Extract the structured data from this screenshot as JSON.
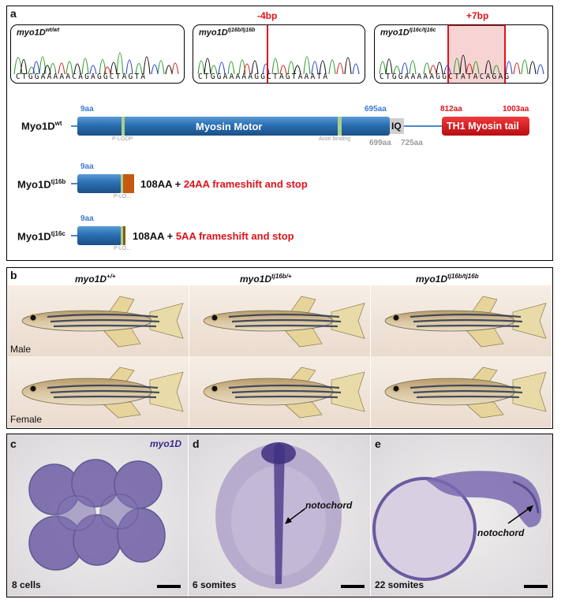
{
  "panel_a": {
    "label": "a",
    "chromatograms": [
      {
        "genotype": "myo1D",
        "superscript": "wt/wt",
        "sequence": "CTGGAAAAACAGAGGCTAGTA"
      },
      {
        "genotype": "myo1D",
        "superscript": "tj16b/tj16b",
        "sequence": "CTGGAAAAAGGCTAGTAAATA",
        "mutation_label": "-4bp"
      },
      {
        "genotype": "myo1D",
        "superscript": "tj16c/tj16c",
        "sequence": "CTGGAAAAAGGCTATACAGAG",
        "mutation_label": "+7bp"
      }
    ],
    "wt_protein": {
      "name": "Myo1D",
      "superscript": "wt",
      "motor_label": "Myosin Motor",
      "ploop_label": "P-LOOP",
      "actin_label": "Actin binding",
      "iq_label": "IQ",
      "tail_label": "TH1 Myosin tail",
      "aa_9": "9aa",
      "aa_695": "695aa",
      "aa_699": "699aa",
      "aa_725": "725aa",
      "aa_812": "812aa",
      "aa_1003": "1003aa"
    },
    "mutants": [
      {
        "name": "Myo1D",
        "superscript": "tj16b",
        "aa_start": "9aa",
        "length": "108AA",
        "plus": "+",
        "frameshift": "24AA frameshift and stop",
        "ploop": "P-LO..."
      },
      {
        "name": "Myo1D",
        "superscript": "tj16c",
        "aa_start": "9aa",
        "length": "108AA",
        "plus": "+",
        "frameshift": "5AA frameshift and stop",
        "ploop": "P-LO..."
      }
    ]
  },
  "panel_b": {
    "label": "b",
    "genotypes": [
      {
        "name": "myo1D",
        "superscript": "+/+"
      },
      {
        "name": "myo1D",
        "superscript": "tj16b/+"
      },
      {
        "name": "myo1D",
        "superscript": "tj16b/tj16b"
      }
    ],
    "rows": [
      "Male",
      "Female"
    ]
  },
  "panel_c": {
    "label": "c",
    "gene": "myo1D",
    "stage": "8 cells"
  },
  "panel_d": {
    "label": "d",
    "stage": "6 somites",
    "annotation": "notochord"
  },
  "panel_e": {
    "label": "e",
    "stage": "22 somites",
    "annotation": "notochord"
  },
  "colors": {
    "motor": "#2a6fb1",
    "tail": "#d9141b",
    "stain": "#5a4a92",
    "frameshift_b": "#c45a12",
    "frameshift_c": "#8a5a12"
  }
}
